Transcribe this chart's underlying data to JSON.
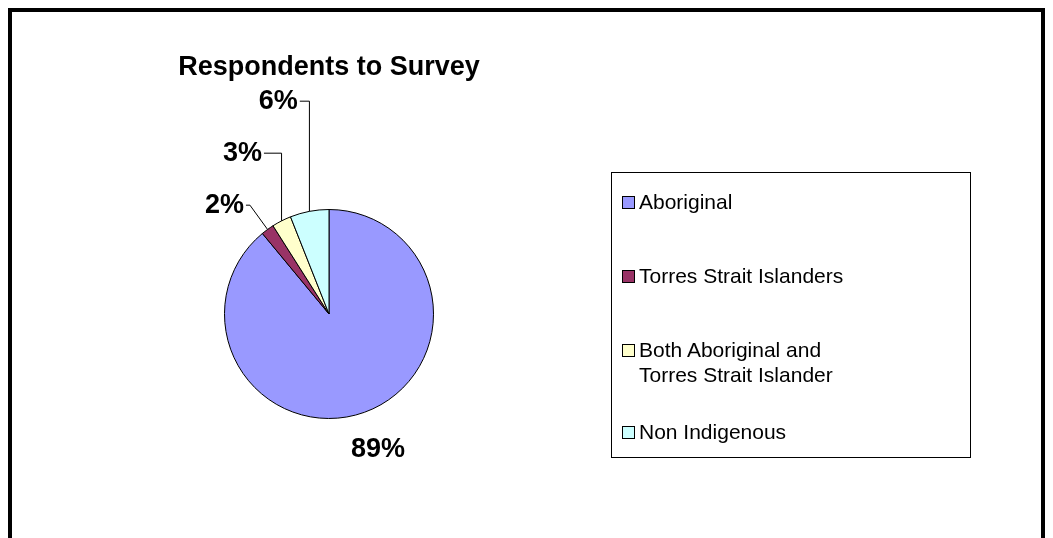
{
  "chart_data": {
    "type": "pie",
    "title": "Respondents to Survey",
    "categories": [
      "Aboriginal",
      "Torres Strait Islanders",
      "Both Aboriginal and Torres Strait Islander",
      "Non Indigenous"
    ],
    "values": [
      89,
      2,
      3,
      6
    ],
    "colors": [
      "#9999ff",
      "#993366",
      "#ffffcc",
      "#ccffff"
    ],
    "value_labels": [
      "89%",
      "2%",
      "3%",
      "6%"
    ],
    "legend": "right"
  }
}
